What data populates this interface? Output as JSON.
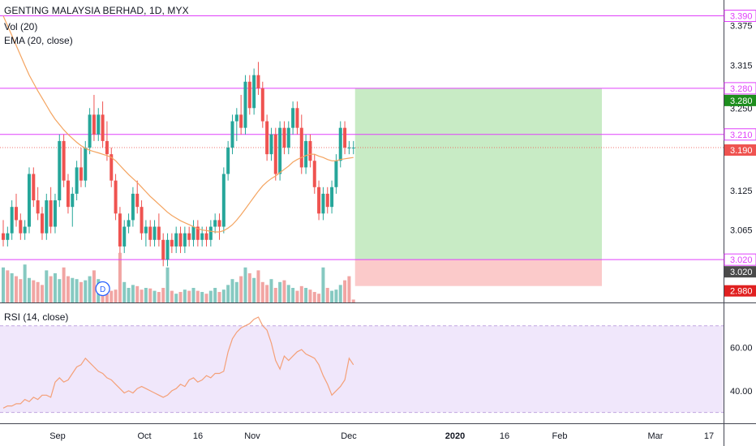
{
  "legend": {
    "title": "GENTING MALAYSIA BERHAD, 1D, MYX",
    "vol": "Vol (20)",
    "ema": "EMA (20, close)",
    "rsi": "RSI (14, close)"
  },
  "colors": {
    "up": "#26a69a",
    "down": "#ef5350",
    "up_vol": "#86c9c1",
    "down_vol": "#f1a5a3",
    "ema": "#f4a460",
    "hline": "#e040fb",
    "target_fill": "#c8ebc5",
    "stop_fill": "#fbcaca",
    "rsi_band": "#f0e7fb",
    "rsi_line": "#f4a078"
  },
  "event_badge": "D",
  "chart_data": [
    {
      "type": "candlestick",
      "title": "GENTING MALAYSIA BERHAD, 1D, MYX",
      "price_axis_ticks": [
        "3.375",
        "3.315",
        "3.250",
        "3.190",
        "3.125",
        "3.065"
      ],
      "time_axis_ticks": [
        "Sep",
        "Oct",
        "16",
        "Nov",
        "Dec",
        "2020",
        "16",
        "Feb",
        "Mar",
        "17"
      ],
      "horizontal_levels": [
        3.39,
        3.28,
        3.21,
        3.02
      ],
      "price_labels": [
        {
          "text": "3.390",
          "value": 3.39,
          "role": "level"
        },
        {
          "text": "3.280",
          "value": 3.28,
          "role": "level"
        },
        {
          "text": "3.280",
          "value": 3.28,
          "role": "target"
        },
        {
          "text": "3.210",
          "value": 3.21,
          "role": "level"
        },
        {
          "text": "3.190",
          "value": 3.19,
          "role": "last"
        },
        {
          "text": "3.020",
          "value": 3.02,
          "role": "level"
        },
        {
          "text": "3.020",
          "value": 3.02,
          "role": "entry"
        },
        {
          "text": "2.980",
          "value": 2.98,
          "role": "stop"
        }
      ],
      "position": {
        "entry": 3.02,
        "target": 3.28,
        "stop": 2.98,
        "start": "Dec 4",
        "end": "Feb 14"
      },
      "dates": [
        "Aug 13",
        "Aug 14",
        "Aug 15",
        "Aug 16",
        "Aug 19",
        "Aug 20",
        "Aug 21",
        "Aug 22",
        "Aug 23",
        "Aug 26",
        "Aug 27",
        "Aug 28",
        "Aug 29",
        "Aug 30",
        "Sep 2",
        "Sep 3",
        "Sep 4",
        "Sep 5",
        "Sep 6",
        "Sep 9",
        "Sep 10",
        "Sep 11",
        "Sep 12",
        "Sep 13",
        "Sep 16",
        "Sep 17",
        "Sep 18",
        "Sep 19",
        "Sep 20",
        "Sep 23",
        "Sep 24",
        "Sep 25",
        "Sep 26",
        "Sep 27",
        "Sep 30",
        "Oct 1",
        "Oct 2",
        "Oct 3",
        "Oct 4",
        "Oct 7",
        "Oct 8",
        "Oct 9",
        "Oct 10",
        "Oct 11",
        "Oct 14",
        "Oct 15",
        "Oct 16",
        "Oct 17",
        "Oct 18",
        "Oct 21",
        "Oct 22",
        "Oct 23",
        "Oct 24",
        "Oct 25",
        "Oct 28",
        "Oct 29",
        "Oct 30",
        "Oct 31",
        "Nov 1",
        "Nov 4",
        "Nov 5",
        "Nov 6",
        "Nov 7",
        "Nov 8",
        "Nov 11",
        "Nov 12",
        "Nov 13",
        "Nov 14",
        "Nov 15",
        "Nov 18",
        "Nov 19",
        "Nov 20",
        "Nov 21",
        "Nov 22",
        "Nov 25",
        "Nov 26",
        "Nov 27",
        "Nov 28",
        "Nov 29",
        "Dec 2",
        "Dec 3",
        "Dec 4"
      ],
      "ohlc": [
        [
          3.06,
          3.08,
          3.04,
          3.05
        ],
        [
          3.05,
          3.07,
          3.04,
          3.06
        ],
        [
          3.06,
          3.11,
          3.05,
          3.1
        ],
        [
          3.1,
          3.12,
          3.07,
          3.08
        ],
        [
          3.08,
          3.09,
          3.05,
          3.06
        ],
        [
          3.06,
          3.08,
          3.05,
          3.07
        ],
        [
          3.07,
          3.16,
          3.06,
          3.15
        ],
        [
          3.15,
          3.16,
          3.1,
          3.11
        ],
        [
          3.11,
          3.13,
          3.08,
          3.09
        ],
        [
          3.09,
          3.1,
          3.05,
          3.06
        ],
        [
          3.06,
          3.12,
          3.05,
          3.11
        ],
        [
          3.11,
          3.13,
          3.06,
          3.07
        ],
        [
          3.07,
          3.12,
          3.06,
          3.11
        ],
        [
          3.11,
          3.21,
          3.1,
          3.2
        ],
        [
          3.2,
          3.21,
          3.13,
          3.14
        ],
        [
          3.14,
          3.15,
          3.09,
          3.1
        ],
        [
          3.1,
          3.13,
          3.07,
          3.12
        ],
        [
          3.12,
          3.17,
          3.11,
          3.16
        ],
        [
          3.16,
          3.19,
          3.13,
          3.14
        ],
        [
          3.14,
          3.2,
          3.13,
          3.19
        ],
        [
          3.19,
          3.25,
          3.18,
          3.24
        ],
        [
          3.24,
          3.27,
          3.2,
          3.21
        ],
        [
          3.21,
          3.25,
          3.2,
          3.24
        ],
        [
          3.24,
          3.26,
          3.19,
          3.2
        ],
        [
          3.2,
          3.23,
          3.17,
          3.18
        ],
        [
          3.18,
          3.19,
          3.13,
          3.14
        ],
        [
          3.14,
          3.15,
          3.08,
          3.09
        ],
        [
          3.09,
          3.1,
          3.03,
          3.04
        ],
        [
          3.04,
          3.08,
          3.03,
          3.07
        ],
        [
          3.07,
          3.09,
          3.06,
          3.08
        ],
        [
          3.08,
          3.13,
          3.07,
          3.12
        ],
        [
          3.12,
          3.14,
          3.09,
          3.1
        ],
        [
          3.1,
          3.11,
          3.05,
          3.06
        ],
        [
          3.06,
          3.08,
          3.04,
          3.07
        ],
        [
          3.07,
          3.08,
          3.04,
          3.05
        ],
        [
          3.05,
          3.08,
          3.04,
          3.07
        ],
        [
          3.07,
          3.09,
          3.04,
          3.05
        ],
        [
          3.05,
          3.06,
          3.01,
          3.02
        ],
        [
          3.02,
          3.06,
          3.01,
          3.05
        ],
        [
          3.05,
          3.06,
          3.03,
          3.04
        ],
        [
          3.04,
          3.07,
          3.03,
          3.06
        ],
        [
          3.06,
          3.07,
          3.03,
          3.04
        ],
        [
          3.04,
          3.07,
          3.03,
          3.06
        ],
        [
          3.06,
          3.07,
          3.04,
          3.05
        ],
        [
          3.05,
          3.08,
          3.04,
          3.07
        ],
        [
          3.07,
          3.08,
          3.04,
          3.05
        ],
        [
          3.05,
          3.07,
          3.04,
          3.06
        ],
        [
          3.06,
          3.07,
          3.04,
          3.05
        ],
        [
          3.05,
          3.08,
          3.04,
          3.07
        ],
        [
          3.07,
          3.09,
          3.06,
          3.08
        ],
        [
          3.08,
          3.09,
          3.05,
          3.07
        ],
        [
          3.07,
          3.16,
          3.06,
          3.15
        ],
        [
          3.15,
          3.2,
          3.14,
          3.19
        ],
        [
          3.19,
          3.24,
          3.18,
          3.23
        ],
        [
          3.23,
          3.25,
          3.2,
          3.24
        ],
        [
          3.24,
          3.27,
          3.21,
          3.22
        ],
        [
          3.22,
          3.3,
          3.21,
          3.29
        ],
        [
          3.29,
          3.3,
          3.24,
          3.25
        ],
        [
          3.25,
          3.31,
          3.24,
          3.3
        ],
        [
          3.3,
          3.32,
          3.27,
          3.28
        ],
        [
          3.28,
          3.29,
          3.22,
          3.23
        ],
        [
          3.23,
          3.24,
          3.17,
          3.18
        ],
        [
          3.18,
          3.22,
          3.17,
          3.21
        ],
        [
          3.21,
          3.22,
          3.14,
          3.15
        ],
        [
          3.15,
          3.23,
          3.14,
          3.22
        ],
        [
          3.22,
          3.23,
          3.18,
          3.19
        ],
        [
          3.19,
          3.23,
          3.18,
          3.22
        ],
        [
          3.22,
          3.26,
          3.21,
          3.25
        ],
        [
          3.25,
          3.26,
          3.21,
          3.22
        ],
        [
          3.22,
          3.24,
          3.15,
          3.16
        ],
        [
          3.16,
          3.21,
          3.15,
          3.2
        ],
        [
          3.2,
          3.21,
          3.16,
          3.17
        ],
        [
          3.17,
          3.18,
          3.12,
          3.13
        ],
        [
          3.13,
          3.14,
          3.08,
          3.09
        ],
        [
          3.09,
          3.13,
          3.08,
          3.12
        ],
        [
          3.12,
          3.13,
          3.09,
          3.1
        ],
        [
          3.1,
          3.14,
          3.09,
          3.13
        ],
        [
          3.13,
          3.18,
          3.12,
          3.17
        ],
        [
          3.17,
          3.23,
          3.16,
          3.22
        ],
        [
          3.22,
          3.23,
          3.18,
          3.19
        ],
        [
          3.19,
          3.2,
          3.18,
          3.19
        ],
        [
          3.19,
          3.2,
          3.18,
          3.19
        ]
      ],
      "ema": [
        3.39,
        3.375,
        3.36,
        3.345,
        3.33,
        3.315,
        3.3,
        3.288,
        3.276,
        3.265,
        3.254,
        3.243,
        3.233,
        3.225,
        3.217,
        3.21,
        3.204,
        3.198,
        3.193,
        3.189,
        3.186,
        3.184,
        3.182,
        3.18,
        3.178,
        3.175,
        3.17,
        3.163,
        3.156,
        3.149,
        3.143,
        3.137,
        3.13,
        3.123,
        3.116,
        3.11,
        3.104,
        3.098,
        3.092,
        3.087,
        3.083,
        3.079,
        3.076,
        3.073,
        3.07,
        3.067,
        3.065,
        3.064,
        3.063,
        3.062,
        3.062,
        3.064,
        3.068,
        3.073,
        3.08,
        3.088,
        3.097,
        3.106,
        3.115,
        3.124,
        3.132,
        3.138,
        3.143,
        3.147,
        3.152,
        3.157,
        3.162,
        3.168,
        3.172,
        3.175,
        3.178,
        3.18,
        3.18,
        3.177,
        3.175,
        3.172,
        3.17,
        3.17,
        3.172,
        3.173,
        3.174,
        3.175
      ],
      "volume": [
        0.6,
        0.55,
        0.5,
        0.45,
        0.4,
        0.65,
        0.42,
        0.38,
        0.35,
        0.3,
        0.55,
        0.45,
        0.5,
        0.4,
        0.6,
        0.45,
        0.42,
        0.4,
        0.35,
        0.38,
        0.45,
        0.55,
        0.4,
        0.25,
        0.15,
        0.2,
        0.22,
        0.85,
        0.35,
        0.25,
        0.3,
        0.28,
        0.22,
        0.25,
        0.24,
        0.2,
        0.18,
        0.25,
        0.6,
        0.2,
        0.15,
        0.18,
        0.22,
        0.2,
        0.25,
        0.2,
        0.18,
        0.15,
        0.2,
        0.25,
        0.18,
        0.22,
        0.3,
        0.4,
        0.35,
        0.45,
        0.6,
        0.5,
        0.42,
        0.55,
        0.35,
        0.3,
        0.4,
        0.25,
        0.35,
        0.38,
        0.3,
        0.25,
        0.2,
        0.28,
        0.25,
        0.22,
        0.18,
        0.15,
        0.6,
        0.25,
        0.2,
        0.22,
        0.3,
        0.38,
        0.45,
        0.05
      ],
      "volume_up": [
        true,
        false,
        true,
        false,
        false,
        true,
        true,
        false,
        false,
        false,
        true,
        false,
        true,
        true,
        false,
        false,
        true,
        true,
        false,
        true,
        true,
        false,
        true,
        false,
        false,
        false,
        false,
        false,
        true,
        true,
        true,
        false,
        false,
        true,
        false,
        true,
        false,
        false,
        true,
        false,
        true,
        false,
        true,
        false,
        true,
        false,
        true,
        false,
        true,
        true,
        false,
        true,
        true,
        true,
        true,
        false,
        true,
        false,
        true,
        false,
        false,
        false,
        true,
        false,
        true,
        false,
        true,
        true,
        false,
        false,
        true,
        false,
        false,
        false,
        true,
        false,
        true,
        true,
        true,
        false,
        false,
        false
      ]
    },
    {
      "type": "line",
      "title": "RSI (14, close)",
      "y_ticks": [
        "60.00",
        "40.00"
      ],
      "band": [
        30,
        70
      ],
      "values": [
        32,
        33,
        33,
        34,
        34,
        36,
        35,
        37,
        36,
        38,
        38,
        37,
        44,
        46,
        44,
        45,
        48,
        51,
        52,
        55,
        53,
        51,
        49,
        48,
        46,
        45,
        43,
        41,
        39,
        40,
        39,
        41,
        42,
        41,
        40,
        39,
        38,
        37,
        38,
        40,
        41,
        43,
        42,
        45,
        46,
        44,
        45,
        47,
        46,
        48,
        48,
        49,
        58,
        64,
        67,
        69,
        70,
        71,
        73,
        74,
        70,
        68,
        62,
        54,
        50,
        56,
        54,
        56,
        58,
        59,
        57,
        56,
        55,
        52,
        47,
        43,
        38,
        40,
        42,
        45,
        55,
        52
      ]
    }
  ]
}
